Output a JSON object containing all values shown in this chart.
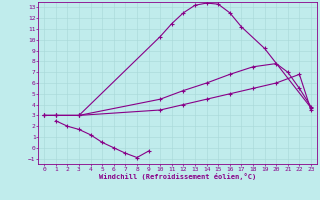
{
  "xlabel": "Windchill (Refroidissement éolien,°C)",
  "background_color": "#c0ecec",
  "grid_color": "#a8d8d8",
  "line_color": "#880088",
  "xlim": [
    -0.5,
    23.5
  ],
  "ylim": [
    -1.5,
    13.5
  ],
  "xticks": [
    0,
    1,
    2,
    3,
    4,
    5,
    6,
    7,
    8,
    9,
    10,
    11,
    12,
    13,
    14,
    15,
    16,
    17,
    18,
    19,
    20,
    21,
    22,
    23
  ],
  "yticks": [
    -1,
    0,
    1,
    2,
    3,
    4,
    5,
    6,
    7,
    8,
    9,
    10,
    11,
    12,
    13
  ],
  "curves": [
    {
      "x": [
        0,
        1,
        3,
        10,
        11,
        12,
        13,
        14,
        15,
        16,
        17,
        19,
        23
      ],
      "y": [
        3.0,
        3.0,
        3.0,
        10.3,
        11.5,
        12.5,
        13.2,
        13.4,
        13.3,
        12.5,
        11.2,
        9.2,
        3.7
      ]
    },
    {
      "x": [
        0,
        1,
        3,
        10,
        12,
        14,
        16,
        18,
        20,
        21,
        22,
        23
      ],
      "y": [
        3.0,
        3.0,
        3.0,
        4.5,
        5.3,
        6.0,
        6.8,
        7.5,
        7.8,
        7.0,
        5.5,
        3.8
      ]
    },
    {
      "x": [
        0,
        1,
        3,
        10,
        12,
        14,
        16,
        18,
        20,
        22,
        23
      ],
      "y": [
        3.0,
        3.0,
        3.0,
        3.5,
        4.0,
        4.5,
        5.0,
        5.5,
        6.0,
        6.8,
        3.5
      ]
    },
    {
      "x": [
        1,
        2,
        3,
        4,
        5,
        6,
        7,
        8,
        9
      ],
      "y": [
        2.5,
        2.0,
        1.7,
        1.2,
        0.5,
        0.0,
        -0.5,
        -0.9,
        -0.3
      ]
    }
  ]
}
